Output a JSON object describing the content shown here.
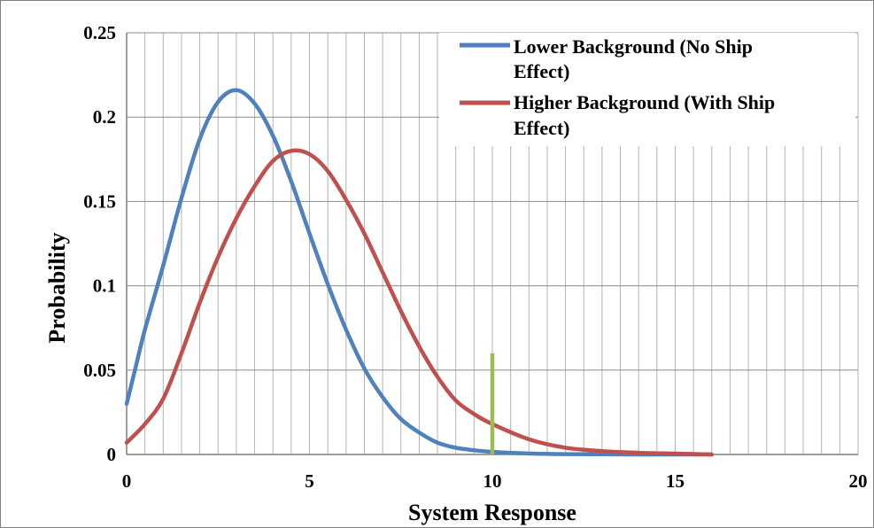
{
  "chart_data": {
    "type": "line",
    "xlabel": "System Response",
    "ylabel": "Probability",
    "xlim": [
      0,
      20
    ],
    "ylim": [
      0,
      0.25
    ],
    "x_ticks": [
      "0",
      "5",
      "10",
      "15",
      "20"
    ],
    "y_ticks": [
      "0",
      "0.05",
      "0.1",
      "0.15",
      "0.2",
      "0.25"
    ],
    "grid": {
      "vertical_step": 0.5,
      "horizontal_step": 0.05
    },
    "legend_placement": "top-right",
    "series": [
      {
        "name": "Lower Background (No Ship Effect)",
        "legend_lines": [
          "Lower Background (No Ship",
          "Effect)"
        ],
        "color": "#4f81bd",
        "points": [
          [
            0,
            0.03
          ],
          [
            0.25,
            0.052
          ],
          [
            0.5,
            0.074
          ],
          [
            1,
            0.112
          ],
          [
            1.5,
            0.152
          ],
          [
            2,
            0.187
          ],
          [
            2.5,
            0.209
          ],
          [
            3,
            0.216
          ],
          [
            3.5,
            0.208
          ],
          [
            4,
            0.189
          ],
          [
            4.5,
            0.162
          ],
          [
            5,
            0.131
          ],
          [
            5.5,
            0.101
          ],
          [
            6,
            0.074
          ],
          [
            6.5,
            0.051
          ],
          [
            7,
            0.034
          ],
          [
            7.5,
            0.021
          ],
          [
            8,
            0.013
          ],
          [
            8.5,
            0.007
          ],
          [
            9,
            0.004
          ],
          [
            9.5,
            0.0025
          ],
          [
            10,
            0.0015
          ],
          [
            11,
            0.0006
          ],
          [
            12,
            0.0002
          ],
          [
            13,
            0.0001
          ],
          [
            14,
            0.0
          ],
          [
            16,
            0.0
          ]
        ]
      },
      {
        "name": "Higher Background (With Ship Effect)",
        "legend_lines": [
          "Higher Background (With Ship",
          "Effect)"
        ],
        "color": "#c0504d",
        "points": [
          [
            0,
            0.007
          ],
          [
            0.5,
            0.018
          ],
          [
            1,
            0.033
          ],
          [
            1.5,
            0.06
          ],
          [
            2,
            0.09
          ],
          [
            2.5,
            0.117
          ],
          [
            3,
            0.14
          ],
          [
            3.5,
            0.159
          ],
          [
            4,
            0.174
          ],
          [
            4.5,
            0.18
          ],
          [
            5,
            0.178
          ],
          [
            5.5,
            0.168
          ],
          [
            6,
            0.151
          ],
          [
            6.5,
            0.131
          ],
          [
            7,
            0.108
          ],
          [
            7.5,
            0.085
          ],
          [
            8,
            0.064
          ],
          [
            8.5,
            0.046
          ],
          [
            9,
            0.032
          ],
          [
            9.5,
            0.024
          ],
          [
            10,
            0.018
          ],
          [
            11,
            0.009
          ],
          [
            12,
            0.004
          ],
          [
            13,
            0.002
          ],
          [
            14,
            0.001
          ],
          [
            15,
            0.0005
          ],
          [
            16,
            0.0
          ]
        ]
      }
    ],
    "threshold_line": {
      "x": 10,
      "y_from": 0,
      "y_to": 0.06,
      "color": "#9bbb59"
    }
  }
}
